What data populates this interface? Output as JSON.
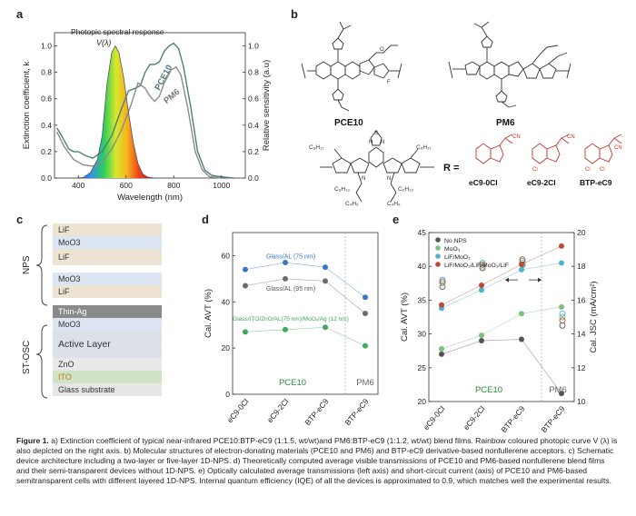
{
  "panel_labels": [
    "a",
    "b",
    "c",
    "d",
    "e"
  ],
  "panel_a": {
    "annotation_title": "Photopic spectral response",
    "annotation_v": "V(λ)",
    "curve_labels": [
      "PCE10",
      "PM6"
    ],
    "xlabel": "Wavelength (nm)",
    "ylabel_left": "Extinction coefficient, k",
    "ylabel_right": "Relative sensitivity (a.u)",
    "xticks": [
      "400",
      "600",
      "800",
      "1000"
    ],
    "yticks_left": [
      "0.0",
      "0.2",
      "0.4",
      "0.6",
      "0.8",
      "1.0"
    ],
    "yticks_right": [
      "0.0",
      "0.2",
      "0.4",
      "0.6",
      "0.8",
      "1.0"
    ]
  },
  "panel_b": {
    "mol_top_left": "PCE10",
    "mol_top_right": "PM6",
    "r_label": "R =",
    "r_groups": [
      "eC9-0Cl",
      "eC9-2Cl",
      "BTP-eC9"
    ],
    "chem_labels": {
      "c8h17_top": "C₈H₁₇",
      "c8h17_right": "C₈H₁₇",
      "c6h13_left": "C₆H₁₃",
      "c6h13_right": "C₆H₁₃",
      "c4h9_left": "C₄H₉",
      "c4h9_right": "C₄H₉",
      "n": "N",
      "s": "S",
      "cn": "CN",
      "cl": "Cl",
      "f": "F",
      "o": "O"
    }
  },
  "panel_c": {
    "layers": [
      {
        "label": "LiF",
        "color": "#ede3d2"
      },
      {
        "label": "MoO3",
        "color": "#dce6f3"
      },
      {
        "label": "LiF",
        "color": "#ede3d2"
      },
      {
        "label": "",
        "color": "#ffffff"
      },
      {
        "label": "MoO3",
        "color": "#dce6f3"
      },
      {
        "label": "LiF",
        "color": "#ede3d2"
      },
      {
        "label": "",
        "color": "#ffffff"
      },
      {
        "label": "Thin-Ag",
        "color": "#8a8a8a"
      },
      {
        "label": "MoO3",
        "color": "#dce6f3"
      },
      {
        "label": "Active Layer",
        "color": "#dbe0e9"
      },
      {
        "label": "ZnO",
        "color": "#e8e8e8"
      },
      {
        "label": "ITO",
        "color": "#cfe3c6"
      },
      {
        "label": "Glass substrate",
        "color": "#e6e6e6"
      }
    ],
    "brace_labels": [
      "NPS",
      "ST-OSC"
    ]
  },
  "chart_data": [
    {
      "type": "line",
      "panel": "a",
      "xlabel": "Wavelength (nm)",
      "ylabel": "Extinction coefficient, k",
      "y2label": "Relative sensitivity (a.u)",
      "xlim": [
        300,
        1100
      ],
      "ylim": [
        0,
        1.1
      ],
      "series": [
        {
          "name": "PCE10",
          "color": "#4e7d7a",
          "points": [
            [
              310,
              0.38
            ],
            [
              330,
              0.32
            ],
            [
              360,
              0.22
            ],
            [
              380,
              0.2
            ],
            [
              400,
              0.2
            ],
            [
              430,
              0.17
            ],
            [
              460,
              0.15
            ],
            [
              500,
              0.2
            ],
            [
              540,
              0.32
            ],
            [
              580,
              0.52
            ],
            [
              610,
              0.66
            ],
            [
              640,
              0.68
            ],
            [
              660,
              0.7
            ],
            [
              680,
              0.8
            ],
            [
              700,
              0.86
            ],
            [
              720,
              0.86
            ],
            [
              740,
              0.88
            ],
            [
              760,
              0.96
            ],
            [
              780,
              1.0
            ],
            [
              800,
              1.02
            ],
            [
              820,
              0.98
            ],
            [
              840,
              0.85
            ],
            [
              870,
              0.55
            ],
            [
              900,
              0.2
            ],
            [
              930,
              0.06
            ],
            [
              960,
              0.02
            ],
            [
              1000,
              0.01
            ],
            [
              1050,
              0.0
            ]
          ]
        },
        {
          "name": "PM6",
          "color": "#8b8b8b",
          "points": [
            [
              310,
              0.35
            ],
            [
              340,
              0.24
            ],
            [
              380,
              0.14
            ],
            [
              420,
              0.1
            ],
            [
              460,
              0.09
            ],
            [
              500,
              0.12
            ],
            [
              540,
              0.22
            ],
            [
              580,
              0.36
            ],
            [
              620,
              0.55
            ],
            [
              650,
              0.72
            ],
            [
              680,
              0.68
            ],
            [
              700,
              0.62
            ],
            [
              720,
              0.58
            ],
            [
              740,
              0.62
            ],
            [
              760,
              0.72
            ],
            [
              790,
              0.82
            ],
            [
              810,
              0.84
            ],
            [
              830,
              0.78
            ],
            [
              860,
              0.52
            ],
            [
              890,
              0.2
            ],
            [
              920,
              0.06
            ],
            [
              950,
              0.01
            ],
            [
              1000,
              0.0
            ]
          ]
        },
        {
          "name": "V(λ)",
          "color": "#555",
          "points": [
            [
              380,
              0.0
            ],
            [
              420,
              0.004
            ],
            [
              450,
              0.04
            ],
            [
              480,
              0.14
            ],
            [
              500,
              0.32
            ],
            [
              520,
              0.71
            ],
            [
              540,
              0.95
            ],
            [
              555,
              1.0
            ],
            [
              570,
              0.95
            ],
            [
              590,
              0.76
            ],
            [
              610,
              0.5
            ],
            [
              630,
              0.27
            ],
            [
              650,
              0.11
            ],
            [
              670,
              0.03
            ],
            [
              690,
              0.008
            ],
            [
              720,
              0.0
            ]
          ]
        }
      ]
    },
    {
      "type": "line",
      "panel": "d",
      "ylabel": "Cal. AVT (%)",
      "categories": [
        "eC9-0Cl",
        "eC9-2Cl",
        "BTP-eC9",
        "BTP-eC9"
      ],
      "group_labels": [
        "PCE10",
        "PM6"
      ],
      "ylim": [
        0,
        70
      ],
      "yticks": [
        "0",
        "20",
        "40",
        "60"
      ],
      "series": [
        {
          "name": "Glass/AL (75 nm)",
          "color": "#3b78c3",
          "values": [
            54,
            57,
            55,
            42
          ]
        },
        {
          "name": "Glass/AL (95 nm)",
          "color": "#6b6b6b",
          "values": [
            47,
            50,
            49,
            35
          ]
        },
        {
          "name": "Glass/ITO/ZnO/AL(75 nm)/MoOₓ/Ag (12 nm)",
          "color": "#3fa85a",
          "values": [
            27,
            28,
            29,
            21
          ]
        }
      ]
    },
    {
      "type": "line",
      "panel": "e",
      "ylabel": "Cal. AVT (%)",
      "y2label": "Cal. JSC (mA/cm²)",
      "categories": [
        "eC9-0Cl",
        "eC9-2Cl",
        "BTP-eC9",
        "BTP-eC9"
      ],
      "group_labels": [
        "PCE10",
        "PM6"
      ],
      "ylim": [
        20,
        45
      ],
      "y2lim": [
        10,
        20
      ],
      "yticks": [
        "20",
        "25",
        "30",
        "35",
        "40",
        "45"
      ],
      "y2ticks": [
        "10",
        "12",
        "14",
        "16",
        "18",
        "20"
      ],
      "series": [
        {
          "name": "No NPS",
          "color": "#555555",
          "avt": [
            27,
            29,
            29.2,
            21.2
          ],
          "jsc": [
            16.8,
            17.9,
            18.1,
            14.5
          ]
        },
        {
          "name": "MoO₃",
          "color": "#7bc07b",
          "avt": [
            27.8,
            29.8,
            33,
            34
          ],
          "jsc": [
            17,
            18,
            18.2,
            15
          ]
        },
        {
          "name": "LiF/MoO₃",
          "color": "#4fb2c8",
          "avt": [
            33.8,
            36.5,
            39.5,
            40.5
          ],
          "jsc": [
            17.2,
            18.2,
            18.3,
            15.2
          ]
        },
        {
          "name": "LiF/MoO₃/LiF/MoO₃/LiF",
          "color": "#b84a3a",
          "avt": [
            34.3,
            37.2,
            40.3,
            43
          ],
          "jsc": [
            17.1,
            18.1,
            18.4,
            14.8
          ]
        }
      ]
    }
  ],
  "caption": {
    "title": "Figure 1.",
    "text": "a) Extinction coefficient of typical near-infrared PCE10:BTP-eC9 (1:1.5, wt/wt)and PM6:BTP-eC9 (1:1.2, wt/wt) blend films. Rainbow coloured photopic curve V (λ) is also depicted on the right axis. b) Molecular structures of electron-donating materials (PCE10 and PM6) and BTP-eC9 derivative-based nonfullerene acceptors. c) Schematic device architecture including a two-layer or five-layer 1D-NPS. d) Theoretically computed average visible transmissions of PCE10 and PM6-based nonfullerene blend films and their semi-transparent devices without 1D-NPS. e) Optically calculated average transmissions (left axis) and short-circuit current (axis) of PCE10 and PM6-based semitransparent cells with different layered 1D-NPS. Internal quantum efficiency (IQE) of all the devices is approximated to 0.9, which matches well the experimental results."
  }
}
